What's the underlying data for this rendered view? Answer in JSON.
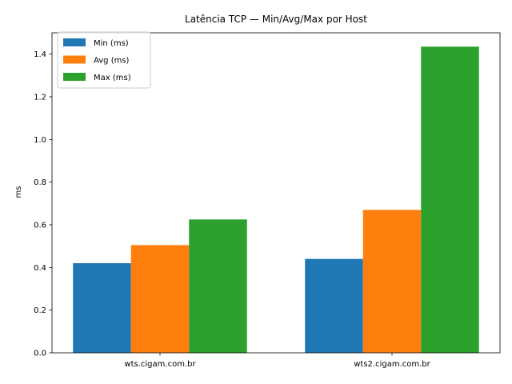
{
  "chart_data": {
    "type": "bar",
    "title": "Latência TCP — Min/Avg/Max por Host",
    "xlabel": "",
    "ylabel": "ms",
    "ylim": [
      0,
      1.5
    ],
    "yticks": [
      "0.0",
      "0.2",
      "0.4",
      "0.6",
      "0.8",
      "1.0",
      "1.2",
      "1.4"
    ],
    "categories": [
      "wts.cigam.com.br",
      "wts2.cigam.com.br"
    ],
    "series": [
      {
        "name": "Min (ms)",
        "color": "#1f77b4",
        "values": [
          0.42,
          0.44
        ]
      },
      {
        "name": "Avg (ms)",
        "color": "#ff7f0e",
        "values": [
          0.505,
          0.67
        ]
      },
      {
        "name": "Max (ms)",
        "color": "#2ca02c",
        "values": [
          0.625,
          1.435
        ]
      }
    ],
    "grid": false,
    "legend": "top-left"
  }
}
